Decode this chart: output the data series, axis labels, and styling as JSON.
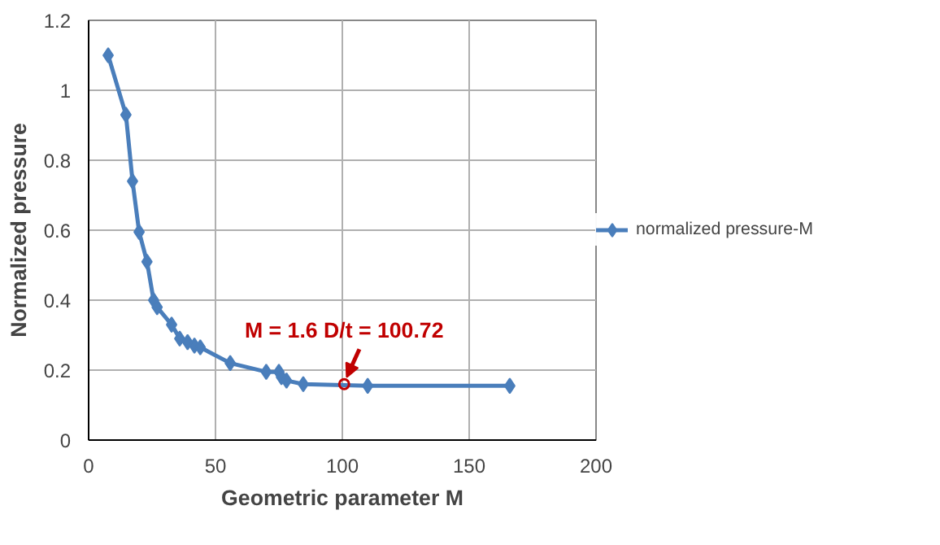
{
  "chart_data": {
    "type": "line",
    "xlabel": "Geometric parameter M",
    "ylabel": "Normalized pressure",
    "x": [
      7.7,
      14.7,
      17.3,
      19.9,
      23,
      25.6,
      27,
      32.7,
      35.9,
      39,
      41.7,
      44,
      55.8,
      70,
      75,
      76,
      78,
      84.6,
      110,
      166
    ],
    "series": [
      {
        "name": "normalized pressure-M",
        "color": "#4a7ebb",
        "values": [
          1.1,
          0.93,
          0.74,
          0.595,
          0.51,
          0.4,
          0.38,
          0.33,
          0.29,
          0.28,
          0.27,
          0.265,
          0.22,
          0.195,
          0.195,
          0.18,
          0.17,
          0.16,
          0.155,
          0.155
        ]
      }
    ],
    "xlim": [
      0,
      200
    ],
    "xticks": [
      0,
      50,
      100,
      150,
      200
    ],
    "ylim": [
      0,
      1.2
    ],
    "yticks": [
      0,
      0.2,
      0.4,
      0.6,
      0.8,
      1,
      1.2
    ],
    "grid": true,
    "legend": "right",
    "marker": "diamond",
    "line_style": "solid",
    "annotations": [
      {
        "text": "M = 1.6 D/t = 100.72",
        "x": 100.72,
        "y": 0.16
      }
    ]
  }
}
